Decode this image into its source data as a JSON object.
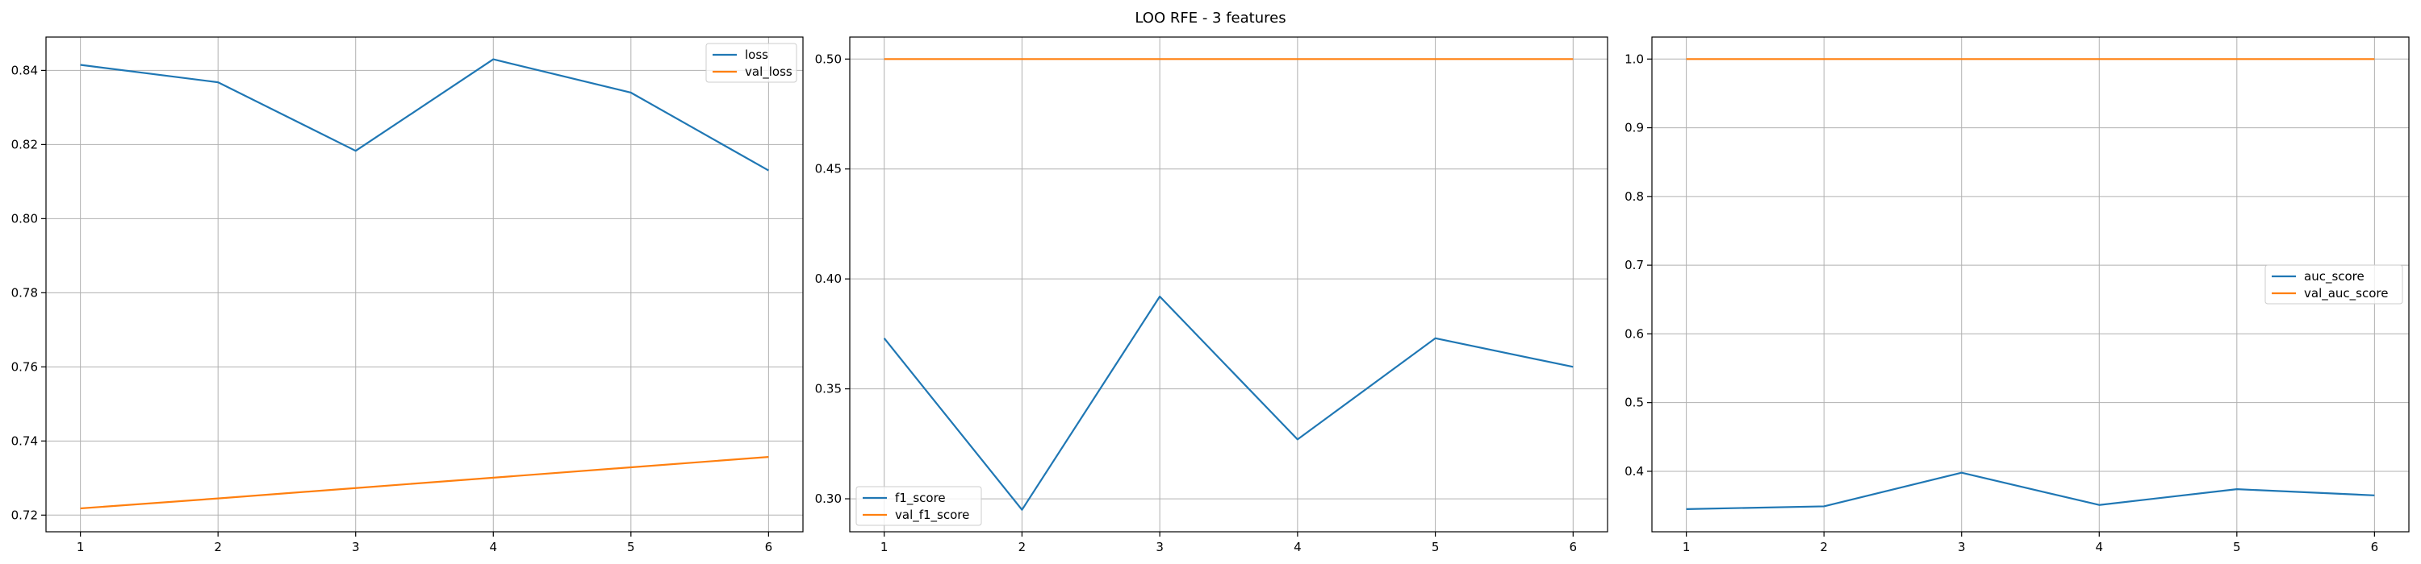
{
  "figure": {
    "title": "LOO RFE - 3 features"
  },
  "chart_data": [
    {
      "type": "line",
      "title": "",
      "xlabel": "",
      "ylabel": "",
      "x": [
        1,
        2,
        3,
        4,
        5,
        6
      ],
      "xticks": [
        "1",
        "2",
        "3",
        "4",
        "5",
        "6"
      ],
      "ylim": [
        0.7155,
        0.849
      ],
      "yticks": [
        0.72,
        0.74,
        0.76,
        0.78,
        0.8,
        0.82,
        0.84
      ],
      "ytick_labels": [
        "0.72",
        "0.74",
        "0.76",
        "0.78",
        "0.80",
        "0.82",
        "0.84"
      ],
      "grid": true,
      "legend": "upper right",
      "series": [
        {
          "name": "loss",
          "color": "#1f77b4",
          "values": [
            0.8415,
            0.8368,
            0.8183,
            0.843,
            0.834,
            0.813
          ]
        },
        {
          "name": "val_loss",
          "color": "#ff7f0e",
          "values": [
            0.7218,
            0.7245,
            0.7273,
            0.7301,
            0.7329,
            0.7357
          ]
        }
      ]
    },
    {
      "type": "line",
      "title": "",
      "xlabel": "",
      "ylabel": "",
      "x": [
        1,
        2,
        3,
        4,
        5,
        6
      ],
      "xticks": [
        "1",
        "2",
        "3",
        "4",
        "5",
        "6"
      ],
      "ylim": [
        0.285,
        0.51
      ],
      "yticks": [
        0.3,
        0.35,
        0.4,
        0.45,
        0.5
      ],
      "ytick_labels": [
        "0.30",
        "0.35",
        "0.40",
        "0.45",
        "0.50"
      ],
      "grid": true,
      "legend": "lower left",
      "series": [
        {
          "name": "f1_score",
          "color": "#1f77b4",
          "values": [
            0.373,
            0.295,
            0.392,
            0.327,
            0.373,
            0.36
          ]
        },
        {
          "name": "val_f1_score",
          "color": "#ff7f0e",
          "values": [
            0.5,
            0.5,
            0.5,
            0.5,
            0.5,
            0.5
          ]
        }
      ]
    },
    {
      "type": "line",
      "title": "",
      "xlabel": "",
      "ylabel": "",
      "x": [
        1,
        2,
        3,
        4,
        5,
        6
      ],
      "xticks": [
        "1",
        "2",
        "3",
        "4",
        "5",
        "6"
      ],
      "ylim": [
        0.312,
        1.032
      ],
      "yticks": [
        0.4,
        0.5,
        0.6,
        0.7,
        0.8,
        0.9,
        1.0
      ],
      "ytick_labels": [
        "0.4",
        "0.5",
        "0.6",
        "0.7",
        "0.8",
        "0.9",
        "1.0"
      ],
      "grid": true,
      "legend": "center right",
      "series": [
        {
          "name": "auc_score",
          "color": "#1f77b4",
          "values": [
            0.345,
            0.349,
            0.398,
            0.351,
            0.374,
            0.365
          ]
        },
        {
          "name": "val_auc_score",
          "color": "#ff7f0e",
          "values": [
            1.0,
            1.0,
            1.0,
            1.0,
            1.0,
            1.0
          ]
        }
      ]
    }
  ]
}
